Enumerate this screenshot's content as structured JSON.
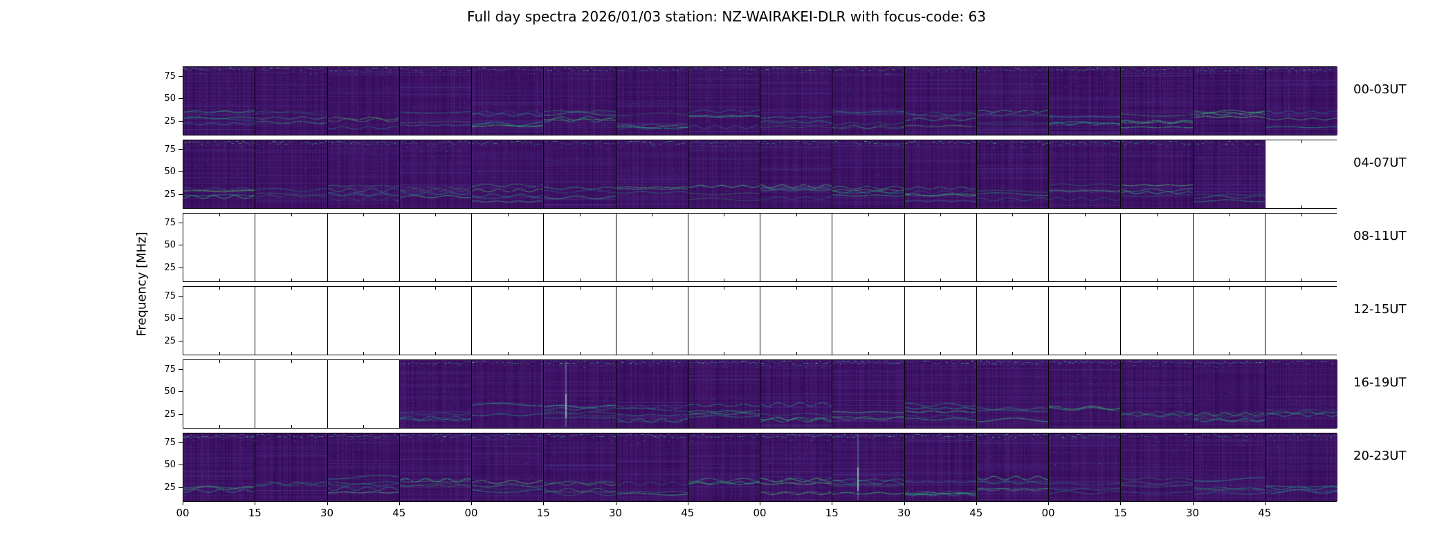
{
  "chart_data": {
    "type": "heatmap",
    "title": "Full day spectra 2026/01/03 station: NZ-WAIRAKEI-DLR with focus-code: 63",
    "ylabel": "Frequency [MHz]",
    "yticks": [
      "75",
      "50",
      "25"
    ],
    "xtick_labels": [
      "00",
      "15",
      "30",
      "45",
      "00",
      "15",
      "30",
      "45",
      "00",
      "15",
      "30",
      "45",
      "00",
      "15",
      "30",
      "45"
    ],
    "panels_per_row": 16,
    "colormap": "viridis",
    "style": {
      "base_color": "#3b0c5e",
      "column_tint": "#4b1a6e",
      "faint_line_color": "#50389a",
      "streak_colors": [
        "#1f9e89",
        "#26a17e",
        "#2db27d",
        "#35b779",
        "#52c569",
        "#21918c"
      ],
      "frame_color": "#000000"
    },
    "rows": [
      {
        "label": "00-03UT",
        "filled": [
          1,
          1,
          1,
          1,
          1,
          1,
          1,
          1,
          1,
          1,
          1,
          1,
          1,
          1,
          1,
          1
        ],
        "vstreaks": []
      },
      {
        "label": "04-07UT",
        "filled": [
          1,
          1,
          1,
          1,
          1,
          1,
          1,
          1,
          1,
          1,
          1,
          1,
          1,
          1,
          1,
          0
        ],
        "vstreaks": []
      },
      {
        "label": "08-11UT",
        "filled": [
          0,
          0,
          0,
          0,
          0,
          0,
          0,
          0,
          0,
          0,
          0,
          0,
          0,
          0,
          0,
          0
        ],
        "vstreaks": []
      },
      {
        "label": "12-15UT",
        "filled": [
          0,
          0,
          0,
          0,
          0,
          0,
          0,
          0,
          0,
          0,
          0,
          0,
          0,
          0,
          0,
          0
        ],
        "vstreaks": []
      },
      {
        "label": "16-19UT",
        "filled": [
          0,
          0,
          0,
          1,
          1,
          1,
          1,
          1,
          1,
          1,
          1,
          1,
          1,
          1,
          1,
          1
        ],
        "vstreaks": [
          5
        ]
      },
      {
        "label": "20-23UT",
        "filled": [
          1,
          1,
          1,
          1,
          1,
          1,
          1,
          1,
          1,
          1,
          1,
          1,
          1,
          1,
          1,
          1
        ],
        "vstreaks": [
          9
        ]
      }
    ]
  }
}
